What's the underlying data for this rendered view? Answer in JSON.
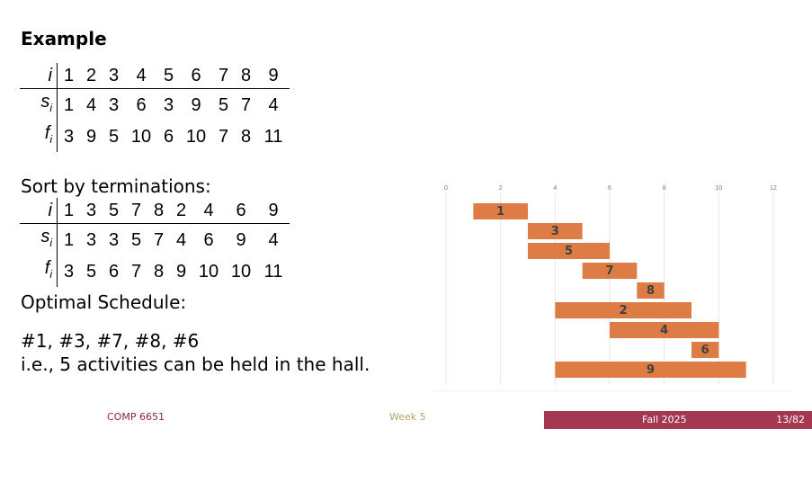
{
  "slide": {
    "title": "Example",
    "table1": {
      "rows": [
        {
          "label": "i",
          "values": [
            "1",
            "2",
            "3",
            "4",
            "5",
            "6",
            "7",
            "8",
            "9"
          ]
        },
        {
          "label": "s",
          "sub": "i",
          "values": [
            "1",
            "4",
            "3",
            "6",
            "3",
            "9",
            "5",
            "7",
            "4"
          ]
        },
        {
          "label": "f",
          "sub": "i",
          "values": [
            "3",
            "9",
            "5",
            "10",
            "6",
            "10",
            "7",
            "8",
            "11"
          ]
        }
      ]
    },
    "sort_label": "Sort by terminations:",
    "table2": {
      "rows": [
        {
          "label": "i",
          "values": [
            "1",
            "3",
            "5",
            "7",
            "8",
            "2",
            "4",
            "6",
            "9"
          ]
        },
        {
          "label": "s",
          "sub": "i",
          "values": [
            "1",
            "3",
            "3",
            "5",
            "7",
            "4",
            "6",
            "9",
            "4"
          ]
        },
        {
          "label": "f",
          "sub": "i",
          "values": [
            "3",
            "5",
            "6",
            "7",
            "8",
            "9",
            "10",
            "10",
            "11"
          ]
        }
      ]
    },
    "optimal_label": "Optimal Schedule:",
    "answer_line1": "#1, #3, #7, #8, #6",
    "answer_line2": "i.e., 5 activities can be held in the hall."
  },
  "chart_data": {
    "type": "bar",
    "orientation": "horizontal-gantt",
    "xlim": [
      0,
      12
    ],
    "x_ticks": [
      "0",
      "2",
      "4",
      "6",
      "8",
      "10",
      "12"
    ],
    "grid": true,
    "bar_color": "#de7c46",
    "bars": [
      {
        "label": "1",
        "start": 1,
        "end": 3
      },
      {
        "label": "3",
        "start": 3,
        "end": 5
      },
      {
        "label": "5",
        "start": 3,
        "end": 6
      },
      {
        "label": "7",
        "start": 5,
        "end": 7
      },
      {
        "label": "8",
        "start": 7,
        "end": 8
      },
      {
        "label": "2",
        "start": 4,
        "end": 9
      },
      {
        "label": "4",
        "start": 6,
        "end": 10
      },
      {
        "label": "6",
        "start": 9,
        "end": 10
      },
      {
        "label": "9",
        "start": 4,
        "end": 11
      }
    ]
  },
  "footer": {
    "course": "COMP 6651",
    "week": "Week 5",
    "term": "Fall 2025",
    "page": "13/82"
  }
}
